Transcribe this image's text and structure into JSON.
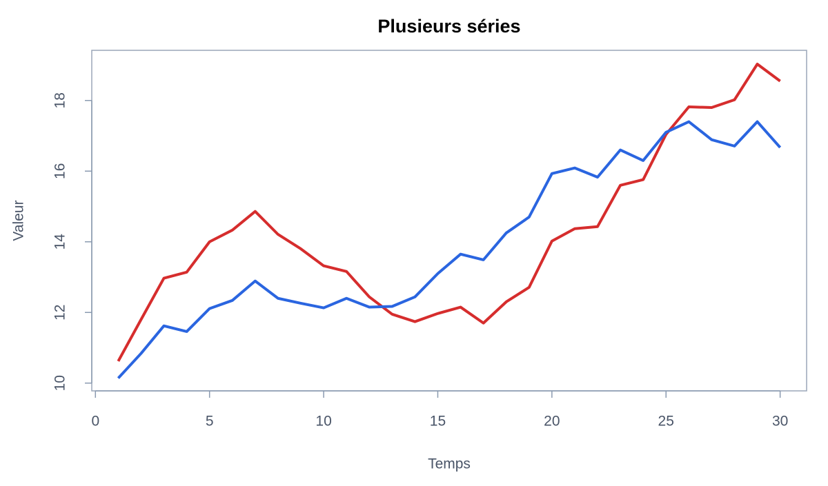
{
  "chart_data": {
    "type": "line",
    "title": "Plusieurs séries",
    "x_label": "Temps",
    "y_label": "Valeur",
    "x": [
      1,
      2,
      3,
      4,
      5,
      6,
      7,
      8,
      9,
      10,
      11,
      12,
      13,
      14,
      15,
      16,
      17,
      18,
      19,
      20,
      21,
      22,
      23,
      24,
      25,
      26,
      27,
      28,
      29,
      30
    ],
    "series": [
      {
        "color": "#d62d2d",
        "values": [
          10.62,
          11.8,
          12.97,
          13.14,
          14.0,
          14.33,
          14.86,
          14.21,
          13.8,
          13.32,
          13.16,
          12.44,
          11.95,
          11.74,
          11.97,
          12.15,
          11.7,
          12.3,
          12.71,
          14.02,
          14.37,
          14.43,
          15.6,
          15.76,
          17.04,
          17.82,
          17.8,
          18.02,
          19.03,
          18.55
        ]
      },
      {
        "color": "#2a65e0",
        "values": [
          10.14,
          10.84,
          11.62,
          11.46,
          12.11,
          12.34,
          12.89,
          12.4,
          12.26,
          12.13,
          12.4,
          12.15,
          12.17,
          12.44,
          13.1,
          13.65,
          13.49,
          14.25,
          14.7,
          15.93,
          16.09,
          15.83,
          16.6,
          16.3,
          17.1,
          17.4,
          16.89,
          16.71,
          17.4,
          16.67
        ]
      }
    ],
    "xlim": [
      -0.16,
      31.16
    ],
    "ylim": [
      9.78,
      19.42
    ],
    "xticks": [
      0,
      5,
      10,
      15,
      20,
      25,
      30
    ],
    "yticks": [
      10,
      12,
      14,
      16,
      18
    ]
  }
}
